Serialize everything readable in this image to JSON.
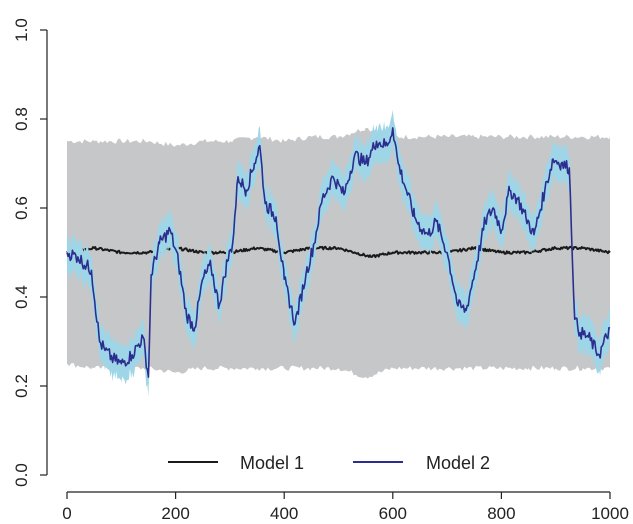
{
  "chart_data": {
    "type": "line",
    "title": "",
    "xlabel": "",
    "ylabel": "",
    "xlim": [
      0,
      1000
    ],
    "ylim": [
      0.0,
      1.0
    ],
    "x_ticks": [
      "0",
      "200",
      "400",
      "600",
      "800",
      "1000"
    ],
    "y_ticks": [
      "0.0",
      "0.2",
      "0.4",
      "0.6",
      "0.8",
      "1.0"
    ],
    "grid": false,
    "legend": {
      "position": "bottom",
      "entries": [
        "Model 1",
        "Model 2"
      ]
    },
    "colors": {
      "model1": "#1a1a1a",
      "model2": "#2b2d8f",
      "model2_band": "#9ed6e8",
      "model1_band": "#c6c7c9"
    },
    "bands": [
      {
        "name": "Model 1 interval",
        "color": "#c6c7c9",
        "x": [
          0,
          50,
          100,
          150,
          200,
          250,
          300,
          350,
          400,
          450,
          500,
          550,
          600,
          650,
          700,
          750,
          800,
          850,
          900,
          950,
          1000
        ],
        "lower": [
          0.25,
          0.24,
          0.24,
          0.24,
          0.23,
          0.24,
          0.24,
          0.24,
          0.24,
          0.24,
          0.24,
          0.22,
          0.24,
          0.24,
          0.24,
          0.24,
          0.24,
          0.24,
          0.24,
          0.24,
          0.24
        ],
        "upper": [
          0.75,
          0.75,
          0.75,
          0.75,
          0.74,
          0.75,
          0.75,
          0.76,
          0.75,
          0.76,
          0.76,
          0.78,
          0.76,
          0.76,
          0.76,
          0.76,
          0.76,
          0.76,
          0.76,
          0.76,
          0.76
        ]
      }
    ],
    "series": [
      {
        "name": "Model 1",
        "color": "#1a1a1a",
        "x": [
          0,
          50,
          100,
          150,
          200,
          250,
          300,
          350,
          400,
          450,
          500,
          530,
          560,
          600,
          650,
          700,
          750,
          800,
          850,
          900,
          950,
          1000
        ],
        "y": [
          0.5,
          0.51,
          0.5,
          0.5,
          0.51,
          0.5,
          0.5,
          0.51,
          0.5,
          0.51,
          0.51,
          0.5,
          0.49,
          0.5,
          0.5,
          0.5,
          0.51,
          0.5,
          0.5,
          0.51,
          0.51,
          0.5
        ]
      },
      {
        "name": "Model 2",
        "color": "#2b2d8f",
        "x": [
          0,
          20,
          45,
          60,
          70,
          85,
          100,
          120,
          140,
          150,
          155,
          170,
          190,
          205,
          220,
          235,
          250,
          265,
          280,
          295,
          305,
          315,
          330,
          345,
          355,
          365,
          385,
          400,
          420,
          440,
          455,
          470,
          490,
          510,
          530,
          550,
          570,
          590,
          600,
          610,
          625,
          640,
          655,
          665,
          680,
          700,
          720,
          735,
          755,
          770,
          785,
          800,
          815,
          830,
          845,
          860,
          880,
          895,
          910,
          925,
          935,
          945,
          960,
          980,
          1000
        ],
        "y": [
          0.5,
          0.49,
          0.46,
          0.3,
          0.28,
          0.26,
          0.25,
          0.27,
          0.31,
          0.22,
          0.45,
          0.52,
          0.55,
          0.48,
          0.36,
          0.33,
          0.44,
          0.47,
          0.38,
          0.48,
          0.52,
          0.67,
          0.64,
          0.7,
          0.74,
          0.61,
          0.58,
          0.44,
          0.34,
          0.45,
          0.52,
          0.62,
          0.67,
          0.63,
          0.72,
          0.7,
          0.75,
          0.74,
          0.78,
          0.7,
          0.64,
          0.58,
          0.55,
          0.54,
          0.57,
          0.5,
          0.38,
          0.37,
          0.48,
          0.57,
          0.6,
          0.55,
          0.64,
          0.62,
          0.58,
          0.54,
          0.64,
          0.71,
          0.7,
          0.69,
          0.35,
          0.32,
          0.31,
          0.27,
          0.33
        ]
      }
    ]
  }
}
